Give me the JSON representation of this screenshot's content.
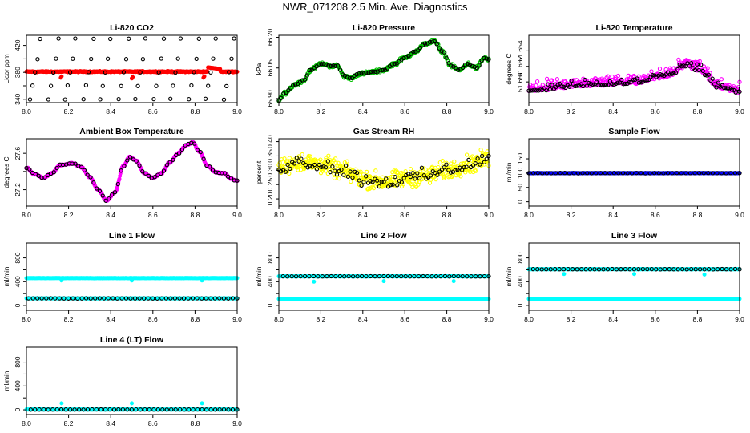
{
  "page_title": "NWR_071208  2.5 Min. Ave. Diagnostics",
  "colors": {
    "black": "#000000",
    "red": "#ff0000",
    "green": "#00c000",
    "magenta": "#ff00ff",
    "yellow": "#ffff00",
    "blue": "#0000ff",
    "cyan": "#00ffff"
  },
  "chart_data": [
    {
      "id": "co2",
      "type": "scatter",
      "title": "Li-820 CO2",
      "ylabel": "Licor ppm",
      "xlim": [
        8.0,
        9.0
      ],
      "ylim": [
        335,
        435
      ],
      "xticks": [
        8.0,
        8.2,
        8.4,
        8.6,
        8.8,
        9.0
      ],
      "xtick_labels": [
        "8.0",
        "8.2",
        "8.4",
        "8.6",
        "8.8",
        "9.0"
      ],
      "yticks": [
        340,
        360,
        380,
        400,
        420
      ],
      "ytick_labels": [
        "340",
        "",
        "380",
        "",
        "420"
      ],
      "series": [
        {
          "name": "co2-sample",
          "color": "red",
          "filled": true,
          "model": "co2"
        },
        {
          "name": "co2-standards",
          "color": "black",
          "filled": false,
          "model": "co2std",
          "levels": [
            340,
            360,
            380,
            400,
            430
          ]
        }
      ]
    },
    {
      "id": "pressure",
      "type": "scatter",
      "title": "Li-820 Pressure",
      "ylabel": "kPa",
      "xlim": [
        8.0,
        9.0
      ],
      "ylim": [
        65.88,
        66.21
      ],
      "xticks": [
        8.0,
        8.2,
        8.4,
        8.6,
        8.8,
        9.0
      ],
      "xtick_labels": [
        "8.0",
        "8.2",
        "8.4",
        "8.6",
        "8.8",
        "9.0"
      ],
      "yticks": [
        65.9,
        66.05,
        66.2
      ],
      "ytick_labels": [
        "65.90",
        "66.05",
        "66.20"
      ],
      "series": [
        {
          "name": "pressure-green",
          "color": "green",
          "filled": false,
          "model": "pressure",
          "jitter": 0.012
        },
        {
          "name": "pressure-black",
          "color": "black",
          "filled": false,
          "model": "pressure",
          "jitter": 0.004
        }
      ]
    },
    {
      "id": "licor_temp",
      "type": "scatter",
      "title": "Li-820 Temperature",
      "ylabel": "degrees C",
      "xlim": [
        8.0,
        9.0
      ],
      "ylim": [
        51.649,
        51.6555
      ],
      "xticks": [
        8.0,
        8.2,
        8.4,
        8.6,
        8.8,
        9.0
      ],
      "xtick_labels": [
        "8.0",
        "8.2",
        "8.4",
        "8.6",
        "8.8",
        "9.0"
      ],
      "yticks": [
        51.651,
        51.6525,
        51.654
      ],
      "ytick_labels": [
        "51.651",
        "51.652",
        "51.654"
      ],
      "series": [
        {
          "name": "licor-temp-magenta",
          "color": "magenta",
          "filled": false,
          "model": "licortemp"
        },
        {
          "name": "licor-temp-black",
          "color": "black",
          "filled": false,
          "model": "licortemp"
        }
      ]
    },
    {
      "id": "box_temp",
      "type": "scatter",
      "title": "Ambient Box Temperature",
      "ylabel": "degrees C",
      "xlim": [
        8.0,
        9.0
      ],
      "ylim": [
        27.02,
        27.76
      ],
      "xticks": [
        8.0,
        8.2,
        8.4,
        8.6,
        8.8,
        9.0
      ],
      "xtick_labels": [
        "8.0",
        "8.2",
        "8.4",
        "8.6",
        "8.8",
        "9.0"
      ],
      "yticks": [
        27.2,
        27.4,
        27.6
      ],
      "ytick_labels": [
        "27.2",
        "",
        "27.6"
      ],
      "series": [
        {
          "name": "box-temp-magenta",
          "color": "magenta",
          "filled": true,
          "model": "boxtemp"
        },
        {
          "name": "box-temp-black",
          "color": "black",
          "filled": false,
          "model": "boxtemp"
        }
      ]
    },
    {
      "id": "rh",
      "type": "scatter",
      "title": "Gas Stream RH",
      "ylabel": "percent",
      "xlim": [
        8.0,
        9.0
      ],
      "ylim": [
        0.175,
        0.41
      ],
      "xticks": [
        8.0,
        8.2,
        8.4,
        8.6,
        8.8,
        9.0
      ],
      "xtick_labels": [
        "8.0",
        "8.2",
        "8.4",
        "8.6",
        "8.8",
        "9.0"
      ],
      "yticks": [
        0.2,
        0.25,
        0.3,
        0.35,
        0.4
      ],
      "ytick_labels": [
        "0.20",
        "0.25",
        "0.30",
        "0.35",
        "0.40"
      ],
      "series": [
        {
          "name": "rh-yellow",
          "color": "yellow",
          "filled": false,
          "model": "rh",
          "jitter": 0.045
        },
        {
          "name": "rh-black",
          "color": "black",
          "filled": false,
          "model": "rh",
          "jitter": 0.035
        }
      ]
    },
    {
      "id": "sample_flow",
      "type": "scatter",
      "title": "Sample Flow",
      "ylabel": "ml/min",
      "xlim": [
        8.0,
        9.0
      ],
      "ylim": [
        -15,
        220
      ],
      "xticks": [
        8.0,
        8.2,
        8.4,
        8.6,
        8.8,
        9.0
      ],
      "xtick_labels": [
        "8.0",
        "8.2",
        "8.4",
        "8.6",
        "8.8",
        "9.0"
      ],
      "yticks": [
        0,
        50,
        100,
        150
      ],
      "ytick_labels": [
        "0",
        "50",
        "100",
        "150"
      ],
      "series": [
        {
          "name": "sample-flow-blue",
          "color": "blue",
          "filled": true,
          "model": "constant",
          "value": 100
        },
        {
          "name": "sample-flow-black",
          "color": "black",
          "filled": false,
          "model": "constant",
          "value": 100
        }
      ]
    },
    {
      "id": "line1",
      "type": "scatter",
      "title": "Line 1 Flow",
      "ylabel": "ml/min",
      "xlim": [
        8.0,
        9.0
      ],
      "ylim": [
        -80,
        1050
      ],
      "xticks": [
        8.0,
        8.2,
        8.4,
        8.6,
        8.8,
        9.0
      ],
      "xtick_labels": [
        "8.0",
        "8.2",
        "8.4",
        "8.6",
        "8.8",
        "9.0"
      ],
      "yticks": [
        0,
        200,
        400,
        600,
        800
      ],
      "ytick_labels": [
        "0",
        "",
        "400",
        "",
        "800"
      ],
      "series": [
        {
          "name": "line1-cyan-high",
          "color": "cyan",
          "filled": true,
          "model": "constant",
          "value": 460,
          "x_range": [
            8.0,
            9.0
          ],
          "dips": [
            [
              8.167,
              420
            ],
            [
              8.5,
              420
            ],
            [
              8.833,
              420
            ]
          ]
        },
        {
          "name": "line1-cyan-low",
          "color": "cyan",
          "filled": true,
          "model": "constant",
          "value": 120,
          "x_range": [
            8.0,
            9.0
          ]
        },
        {
          "name": "line1-black",
          "color": "black",
          "filled": false,
          "model": "constant",
          "value": 120,
          "x_range": [
            8.01,
            9.0
          ]
        }
      ]
    },
    {
      "id": "line2",
      "type": "scatter",
      "title": "Line 2 Flow",
      "ylabel": "ml/min",
      "xlim": [
        8.0,
        9.0
      ],
      "ylim": [
        -80,
        1050
      ],
      "xticks": [
        8.0,
        8.2,
        8.4,
        8.6,
        8.8,
        9.0
      ],
      "xtick_labels": [
        "8.0",
        "8.2",
        "8.4",
        "8.6",
        "8.8",
        "9.0"
      ],
      "yticks": [
        0,
        200,
        400,
        600,
        800
      ],
      "ytick_labels": [
        "0",
        "",
        "400",
        "",
        "800"
      ],
      "series": [
        {
          "name": "line2-cyan-high",
          "color": "cyan",
          "filled": true,
          "model": "constant",
          "value": 490,
          "x_range": [
            8.0,
            9.0
          ],
          "dips": [
            [
              8.167,
              400
            ],
            [
              8.5,
              410
            ],
            [
              8.833,
              410
            ]
          ]
        },
        {
          "name": "line2-cyan-low",
          "color": "cyan",
          "filled": true,
          "model": "constant",
          "value": 110,
          "x_range": [
            8.0,
            9.0
          ]
        },
        {
          "name": "line2-black",
          "color": "black",
          "filled": false,
          "model": "constant",
          "value": 490,
          "x_range": [
            8.02,
            9.0
          ]
        }
      ]
    },
    {
      "id": "line3",
      "type": "scatter",
      "title": "Line 3 Flow",
      "ylabel": "ml/min",
      "xlim": [
        8.0,
        9.0
      ],
      "ylim": [
        -80,
        1050
      ],
      "xticks": [
        8.0,
        8.2,
        8.4,
        8.6,
        8.8,
        9.0
      ],
      "xtick_labels": [
        "8.0",
        "8.2",
        "8.4",
        "8.6",
        "8.8",
        "9.0"
      ],
      "yticks": [
        0,
        200,
        400,
        600,
        800
      ],
      "ytick_labels": [
        "0",
        "",
        "400",
        "",
        "800"
      ],
      "series": [
        {
          "name": "line3-cyan-high",
          "color": "cyan",
          "filled": true,
          "model": "constant",
          "value": 610,
          "x_range": [
            8.0,
            9.0
          ],
          "dips": [
            [
              8.167,
              530
            ],
            [
              8.5,
              530
            ],
            [
              8.833,
              520
            ]
          ]
        },
        {
          "name": "line3-cyan-low",
          "color": "cyan",
          "filled": true,
          "model": "constant",
          "value": 110,
          "x_range": [
            8.0,
            9.0
          ]
        },
        {
          "name": "line3-black",
          "color": "black",
          "filled": false,
          "model": "constant",
          "value": 610,
          "x_range": [
            8.02,
            9.0
          ]
        }
      ]
    },
    {
      "id": "line4",
      "type": "scatter",
      "title": "Line 4 (LT) Flow",
      "ylabel": "ml/min",
      "xlim": [
        8.0,
        9.0
      ],
      "ylim": [
        -80,
        1050
      ],
      "xticks": [
        8.0,
        8.2,
        8.4,
        8.6,
        8.8,
        9.0
      ],
      "xtick_labels": [
        "8.0",
        "8.2",
        "8.4",
        "8.6",
        "8.8",
        "9.0"
      ],
      "yticks": [
        0,
        200,
        400,
        600,
        800
      ],
      "ytick_labels": [
        "0",
        "",
        "400",
        "",
        "800"
      ],
      "series": [
        {
          "name": "line4-cyan",
          "color": "cyan",
          "filled": true,
          "model": "constant",
          "value": 5,
          "x_range": [
            8.0,
            9.0
          ],
          "spikes": [
            [
              8.167,
              110
            ],
            [
              8.5,
              110
            ],
            [
              8.833,
              110
            ]
          ]
        },
        {
          "name": "line4-black",
          "color": "black",
          "filled": false,
          "model": "constant",
          "value": 5,
          "x_range": [
            8.02,
            9.0
          ]
        }
      ]
    }
  ]
}
